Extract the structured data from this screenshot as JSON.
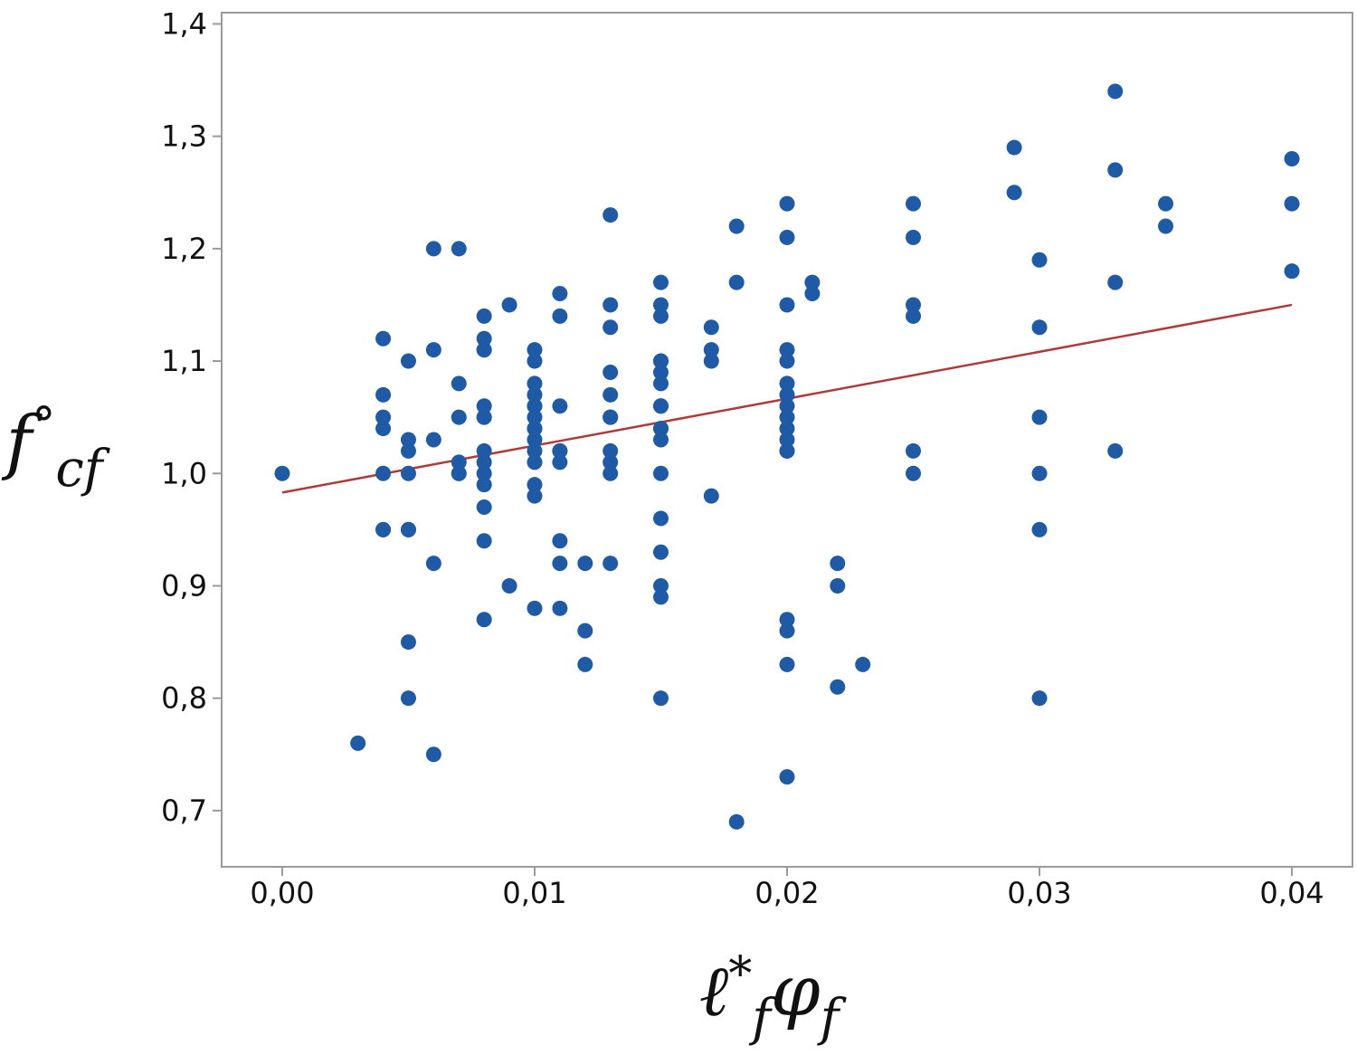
{
  "chart_data": {
    "type": "scatter",
    "title": "",
    "xlabel": "ℓ*fφf",
    "ylabel": "f°cf",
    "xlim": [
      -0.0024,
      0.0424
    ],
    "ylim": [
      0.65,
      1.41
    ],
    "xticks": [
      0.0,
      0.01,
      0.02,
      0.03,
      0.04
    ],
    "xtick_labels": [
      "0,00",
      "0,01",
      "0,02",
      "0,03",
      "0,04"
    ],
    "yticks": [
      0.7,
      0.8,
      0.9,
      1.0,
      1.1,
      1.2,
      1.3,
      1.4
    ],
    "ytick_labels": [
      "0,7",
      "0,8",
      "0,9",
      "1,0",
      "1,1",
      "1,2",
      "1,3",
      "1,4"
    ],
    "grid": false,
    "colors": {
      "points": "#1f5aa6",
      "fit": "#b03a3a",
      "frame": "#9a9a9a"
    },
    "series": [
      {
        "kind": "points",
        "x": [
          0.0,
          0.003,
          0.004,
          0.004,
          0.004,
          0.004,
          0.004,
          0.004,
          0.004,
          0.005,
          0.005,
          0.005,
          0.005,
          0.005,
          0.005,
          0.005,
          0.005,
          0.006,
          0.006,
          0.006,
          0.006,
          0.006,
          0.007,
          0.007,
          0.007,
          0.007,
          0.007,
          0.007,
          0.008,
          0.008,
          0.008,
          0.008,
          0.008,
          0.008,
          0.008,
          0.008,
          0.008,
          0.008,
          0.008,
          0.008,
          0.008,
          0.008,
          0.009,
          0.009,
          0.01,
          0.01,
          0.01,
          0.01,
          0.01,
          0.01,
          0.01,
          0.01,
          0.01,
          0.01,
          0.01,
          0.01,
          0.01,
          0.01,
          0.01,
          0.011,
          0.011,
          0.011,
          0.011,
          0.011,
          0.011,
          0.011,
          0.011,
          0.011,
          0.012,
          0.012,
          0.012,
          0.013,
          0.013,
          0.013,
          0.013,
          0.013,
          0.013,
          0.013,
          0.013,
          0.013,
          0.013,
          0.013,
          0.015,
          0.015,
          0.015,
          0.015,
          0.015,
          0.015,
          0.015,
          0.015,
          0.015,
          0.015,
          0.015,
          0.015,
          0.015,
          0.015,
          0.015,
          0.015,
          0.015,
          0.015,
          0.017,
          0.017,
          0.017,
          0.017,
          0.018,
          0.018,
          0.018,
          0.02,
          0.02,
          0.02,
          0.02,
          0.02,
          0.02,
          0.02,
          0.02,
          0.02,
          0.02,
          0.02,
          0.02,
          0.02,
          0.02,
          0.02,
          0.02,
          0.02,
          0.021,
          0.021,
          0.022,
          0.022,
          0.022,
          0.023,
          0.025,
          0.025,
          0.025,
          0.025,
          0.025,
          0.025,
          0.029,
          0.029,
          0.03,
          0.03,
          0.03,
          0.03,
          0.03,
          0.03,
          0.033,
          0.033,
          0.033,
          0.033,
          0.035,
          0.035,
          0.04,
          0.04,
          0.04
        ],
        "y": [
          1.0,
          0.76,
          1.12,
          1.07,
          1.05,
          1.04,
          1.0,
          0.95,
          0.95,
          1.1,
          1.03,
          1.02,
          1.0,
          0.95,
          0.95,
          0.85,
          0.8,
          1.2,
          1.11,
          1.03,
          0.92,
          0.75,
          1.2,
          1.08,
          1.05,
          1.01,
          1.0,
          1.0,
          1.14,
          1.12,
          1.11,
          1.06,
          1.05,
          1.02,
          1.01,
          1.0,
          0.99,
          0.97,
          0.94,
          0.87,
          1.11,
          1.05,
          1.15,
          0.9,
          1.11,
          1.1,
          1.08,
          1.07,
          1.06,
          1.05,
          1.04,
          1.03,
          1.01,
          0.99,
          0.98,
          0.88,
          1.06,
          1.04,
          1.02,
          1.16,
          1.14,
          1.06,
          1.02,
          1.01,
          0.94,
          0.92,
          0.88,
          1.02,
          0.92,
          0.86,
          0.83,
          1.23,
          1.15,
          1.13,
          1.09,
          1.07,
          1.05,
          1.02,
          1.01,
          1.0,
          0.92,
          1.05,
          1.17,
          1.15,
          1.14,
          1.1,
          1.09,
          1.08,
          1.06,
          1.04,
          1.03,
          1.0,
          0.96,
          0.93,
          0.9,
          0.89,
          0.8,
          1.1,
          1.04,
          1.06,
          1.13,
          1.11,
          1.1,
          0.98,
          1.22,
          1.17,
          0.69,
          1.24,
          1.21,
          1.15,
          1.11,
          1.1,
          1.08,
          1.07,
          1.05,
          1.04,
          1.03,
          1.02,
          0.87,
          0.86,
          0.83,
          0.73,
          1.06,
          1.02,
          1.17,
          1.16,
          0.92,
          0.9,
          0.81,
          0.83,
          1.24,
          1.21,
          1.15,
          1.14,
          1.02,
          1.0,
          1.29,
          1.25,
          1.19,
          1.13,
          1.05,
          1.0,
          0.95,
          0.8,
          1.34,
          1.27,
          1.17,
          1.02,
          1.24,
          1.22,
          1.28,
          1.24,
          1.18
        ]
      },
      {
        "kind": "fit-line",
        "x": [
          0.0,
          0.04
        ],
        "y": [
          0.983,
          1.15
        ]
      }
    ]
  }
}
